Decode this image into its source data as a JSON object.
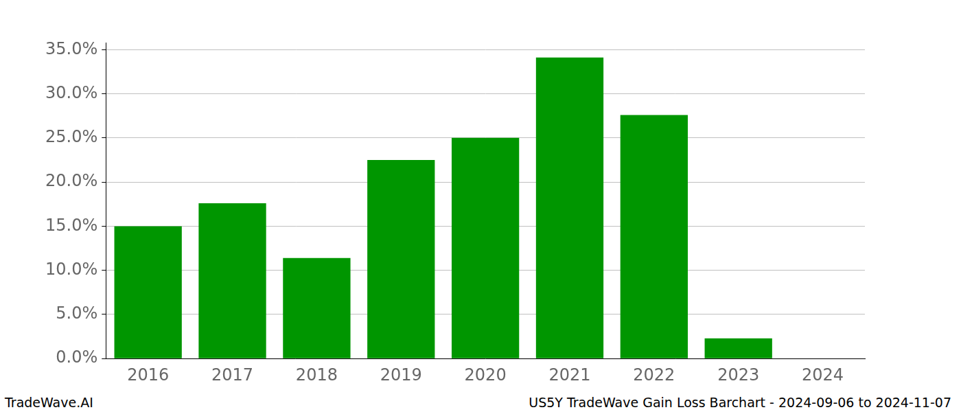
{
  "chart_data": {
    "type": "bar",
    "categories": [
      "2016",
      "2017",
      "2018",
      "2019",
      "2020",
      "2021",
      "2022",
      "2023",
      "2024"
    ],
    "values": [
      15.0,
      17.6,
      11.4,
      22.5,
      25.0,
      34.1,
      27.6,
      2.3,
      0
    ],
    "color": "#009600",
    "ylim": [
      0,
      35.8
    ],
    "yticks": [
      {
        "value": 0,
        "label": "0.0%"
      },
      {
        "value": 5,
        "label": "5.0%"
      },
      {
        "value": 10,
        "label": "10.0%"
      },
      {
        "value": 15,
        "label": "15.0%"
      },
      {
        "value": 20,
        "label": "20.0%"
      },
      {
        "value": 25,
        "label": "25.0%"
      },
      {
        "value": 30,
        "label": "30.0%"
      },
      {
        "value": 35,
        "label": "35.0%"
      }
    ],
    "grid": true,
    "annotations": [
      "TradeWave.AI",
      "US5Y TradeWave Gain Loss Barchart - 2024-09-06 to 2024-11-07"
    ]
  }
}
